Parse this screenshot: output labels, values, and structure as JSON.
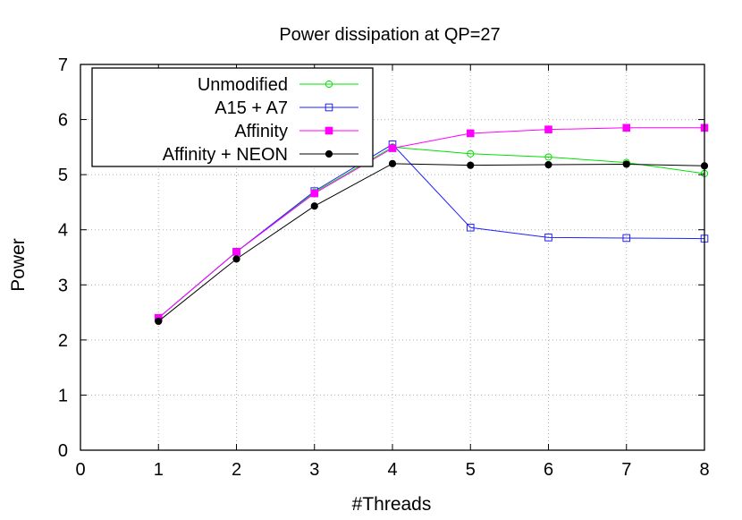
{
  "chart_data": {
    "type": "line",
    "title": "Power dissipation at QP=27",
    "xlabel": "#Threads",
    "ylabel": "Power",
    "xlim": [
      0,
      8
    ],
    "ylim": [
      0,
      7
    ],
    "xticks": [
      "0",
      "1",
      "2",
      "3",
      "4",
      "5",
      "6",
      "7",
      "8"
    ],
    "yticks": [
      "0",
      "1",
      "2",
      "3",
      "4",
      "5",
      "6",
      "7"
    ],
    "grid": true,
    "legend_position": "top-left",
    "x": [
      1,
      2,
      3,
      4,
      5,
      6,
      7,
      8
    ],
    "series": [
      {
        "name": "Unmodified",
        "color": "#00e000",
        "marker": "open-circle",
        "values": [
          2.4,
          3.6,
          4.68,
          5.5,
          5.38,
          5.32,
          5.22,
          5.02
        ]
      },
      {
        "name": "A15 + A7",
        "color": "#2020ff",
        "marker": "open-square",
        "values": [
          2.4,
          3.6,
          4.7,
          5.55,
          4.04,
          3.86,
          3.85,
          3.84
        ]
      },
      {
        "name": "Affinity",
        "color": "#ff00ff",
        "marker": "filled-square",
        "values": [
          2.4,
          3.6,
          4.66,
          5.48,
          5.75,
          5.82,
          5.85,
          5.85
        ]
      },
      {
        "name": "Affinity + NEON",
        "color": "#000000",
        "marker": "filled-circle",
        "values": [
          2.34,
          3.47,
          4.43,
          5.2,
          5.17,
          5.18,
          5.19,
          5.16
        ]
      }
    ]
  }
}
